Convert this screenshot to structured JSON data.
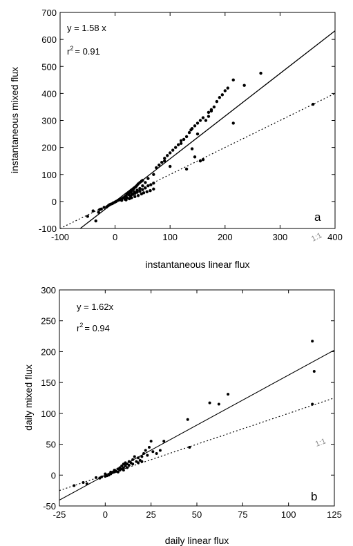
{
  "chart_data": [
    {
      "type": "scatter",
      "panel_label": "a",
      "xlabel": "instantaneous linear flux",
      "ylabel": "instantaneous mixed flux",
      "xlim": [
        -100,
        400
      ],
      "ylim": [
        -100,
        700
      ],
      "x_ticks": [
        "-100",
        "0",
        "100",
        "200",
        "300",
        "400"
      ],
      "y_ticks": [
        "-100",
        "0",
        "100",
        "200",
        "300",
        "400",
        "500",
        "600",
        "700"
      ],
      "fit_equation": "y = 1.58 x",
      "r2_label": "r",
      "r2_sup": "2",
      "r2_value": "= 0.91",
      "one_to_one_label": "1:1",
      "fit_slope": 1.58,
      "grid": false,
      "points": [
        [
          -50,
          -55
        ],
        [
          -40,
          -35
        ],
        [
          -35,
          -72
        ],
        [
          -30,
          -40
        ],
        [
          -28,
          -30
        ],
        [
          -25,
          -28
        ],
        [
          -20,
          -22
        ],
        [
          -15,
          -20
        ],
        [
          -12,
          -15
        ],
        [
          -10,
          -12
        ],
        [
          -8,
          -10
        ],
        [
          -5,
          -8
        ],
        [
          -3,
          -5
        ],
        [
          0,
          -2
        ],
        [
          2,
          0
        ],
        [
          5,
          4
        ],
        [
          8,
          6
        ],
        [
          10,
          8
        ],
        [
          12,
          10
        ],
        [
          15,
          14
        ],
        [
          18,
          18
        ],
        [
          20,
          22
        ],
        [
          22,
          28
        ],
        [
          25,
          32
        ],
        [
          28,
          36
        ],
        [
          30,
          40
        ],
        [
          33,
          45
        ],
        [
          35,
          50
        ],
        [
          38,
          55
        ],
        [
          40,
          60
        ],
        [
          42,
          65
        ],
        [
          45,
          70
        ],
        [
          48,
          75
        ],
        [
          50,
          78
        ],
        [
          12,
          4
        ],
        [
          18,
          8
        ],
        [
          22,
          14
        ],
        [
          28,
          20
        ],
        [
          32,
          26
        ],
        [
          36,
          30
        ],
        [
          40,
          34
        ],
        [
          45,
          38
        ],
        [
          50,
          44
        ],
        [
          55,
          50
        ],
        [
          60,
          58
        ],
        [
          65,
          62
        ],
        [
          70,
          68
        ],
        [
          20,
          6
        ],
        [
          26,
          10
        ],
        [
          30,
          14
        ],
        [
          36,
          18
        ],
        [
          42,
          22
        ],
        [
          48,
          28
        ],
        [
          52,
          32
        ],
        [
          58,
          36
        ],
        [
          64,
          40
        ],
        [
          70,
          46
        ],
        [
          25,
          25
        ],
        [
          30,
          30
        ],
        [
          35,
          35
        ],
        [
          40,
          42
        ],
        [
          45,
          48
        ],
        [
          50,
          58
        ],
        [
          55,
          70
        ],
        [
          60,
          85
        ],
        [
          70,
          100
        ],
        [
          75,
          125
        ],
        [
          80,
          135
        ],
        [
          85,
          145
        ],
        [
          90,
          160
        ],
        [
          95,
          170
        ],
        [
          100,
          180
        ],
        [
          105,
          190
        ],
        [
          110,
          200
        ],
        [
          115,
          210
        ],
        [
          120,
          225
        ],
        [
          125,
          230
        ],
        [
          130,
          240
        ],
        [
          135,
          255
        ],
        [
          138,
          265
        ],
        [
          140,
          270
        ],
        [
          145,
          280
        ],
        [
          150,
          290
        ],
        [
          155,
          300
        ],
        [
          160,
          310
        ],
        [
          170,
          330
        ],
        [
          175,
          340
        ],
        [
          180,
          350
        ],
        [
          185,
          370
        ],
        [
          190,
          385
        ],
        [
          195,
          395
        ],
        [
          200,
          410
        ],
        [
          205,
          420
        ],
        [
          215,
          450
        ],
        [
          235,
          430
        ],
        [
          265,
          475
        ],
        [
          215,
          290
        ],
        [
          140,
          195
        ],
        [
          145,
          165
        ],
        [
          155,
          150
        ],
        [
          130,
          120
        ],
        [
          100,
          130
        ],
        [
          160,
          155
        ],
        [
          360,
          360
        ],
        [
          90,
          150
        ],
        [
          150,
          250
        ],
        [
          165,
          300
        ],
        [
          170,
          315
        ],
        [
          175,
          335
        ],
        [
          120,
          215
        ]
      ]
    },
    {
      "type": "scatter",
      "panel_label": "b",
      "xlabel": "daily linear flux",
      "ylabel": "daily mixed flux",
      "xlim": [
        -25,
        125
      ],
      "ylim": [
        -50,
        300
      ],
      "x_ticks": [
        "-25",
        "0",
        "25",
        "50",
        "75",
        "100",
        "125"
      ],
      "y_ticks": [
        "-50",
        "0",
        "50",
        "100",
        "150",
        "200",
        "250",
        "300"
      ],
      "fit_equation": "y = 1.62x",
      "r2_label": "r",
      "r2_sup": "2",
      "r2_value": "= 0.94",
      "one_to_one_label": "1:1",
      "fit_slope": 1.62,
      "grid": false,
      "points": [
        [
          -17,
          -17
        ],
        [
          -12,
          -12
        ],
        [
          -10,
          -14
        ],
        [
          -5,
          -4
        ],
        [
          -3,
          -5
        ],
        [
          -2,
          -3
        ],
        [
          0,
          -2
        ],
        [
          0,
          2
        ],
        [
          1,
          -1
        ],
        [
          2,
          0
        ],
        [
          3,
          2
        ],
        [
          3,
          5
        ],
        [
          4,
          4
        ],
        [
          5,
          5
        ],
        [
          5,
          8
        ],
        [
          6,
          6
        ],
        [
          7,
          10
        ],
        [
          7,
          5
        ],
        [
          8,
          8
        ],
        [
          8,
          12
        ],
        [
          9,
          10
        ],
        [
          9,
          15
        ],
        [
          10,
          12
        ],
        [
          10,
          18
        ],
        [
          10,
          8
        ],
        [
          11,
          20
        ],
        [
          11,
          15
        ],
        [
          12,
          18
        ],
        [
          12,
          12
        ],
        [
          13,
          22
        ],
        [
          13,
          16
        ],
        [
          14,
          20
        ],
        [
          15,
          25
        ],
        [
          16,
          30
        ],
        [
          17,
          22
        ],
        [
          18,
          28
        ],
        [
          19,
          24
        ],
        [
          20,
          30
        ],
        [
          21,
          35
        ],
        [
          22,
          40
        ],
        [
          23,
          32
        ],
        [
          24,
          45
        ],
        [
          25,
          55
        ],
        [
          26,
          38
        ],
        [
          28,
          35
        ],
        [
          30,
          40
        ],
        [
          32,
          55
        ],
        [
          15,
          18
        ],
        [
          18,
          20
        ],
        [
          20,
          22
        ],
        [
          45,
          90
        ],
        [
          46,
          45
        ],
        [
          57,
          117
        ],
        [
          62,
          115
        ],
        [
          67,
          131
        ],
        [
          113,
          217
        ],
        [
          114,
          168
        ],
        [
          113,
          115
        ]
      ]
    }
  ]
}
